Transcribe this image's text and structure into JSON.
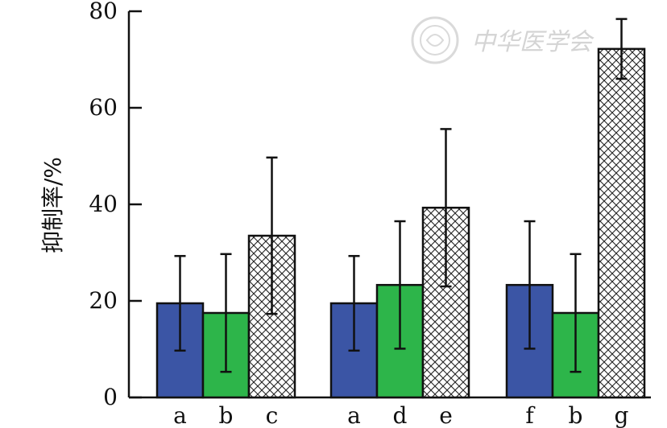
{
  "chart_data": {
    "type": "bar",
    "title": "",
    "xlabel": "",
    "ylabel": "抑制率/%",
    "ylim": [
      0,
      80
    ],
    "yticks": [
      0,
      20,
      40,
      60,
      80
    ],
    "grid": false,
    "groups": [
      {
        "categories": [
          "a",
          "b",
          "c"
        ],
        "values": [
          19.5,
          17.5,
          33.5
        ],
        "errors": [
          9.8,
          12.2,
          16.2
        ]
      },
      {
        "categories": [
          "a",
          "d",
          "e"
        ],
        "values": [
          19.5,
          23.3,
          39.3
        ],
        "errors": [
          9.8,
          13.2,
          16.3
        ]
      },
      {
        "categories": [
          "f",
          "b",
          "g"
        ],
        "values": [
          23.3,
          17.5,
          72.2
        ],
        "errors": [
          13.2,
          12.2,
          6.2
        ]
      }
    ],
    "bar_styles": [
      {
        "fill": "#3b55a5",
        "pattern": "solid"
      },
      {
        "fill": "#2db54a",
        "pattern": "solid"
      },
      {
        "fill": "#ffffff",
        "pattern": "crosshatch"
      }
    ],
    "stroke_color": "#111111"
  },
  "watermark": {
    "text": "中华医学会"
  }
}
